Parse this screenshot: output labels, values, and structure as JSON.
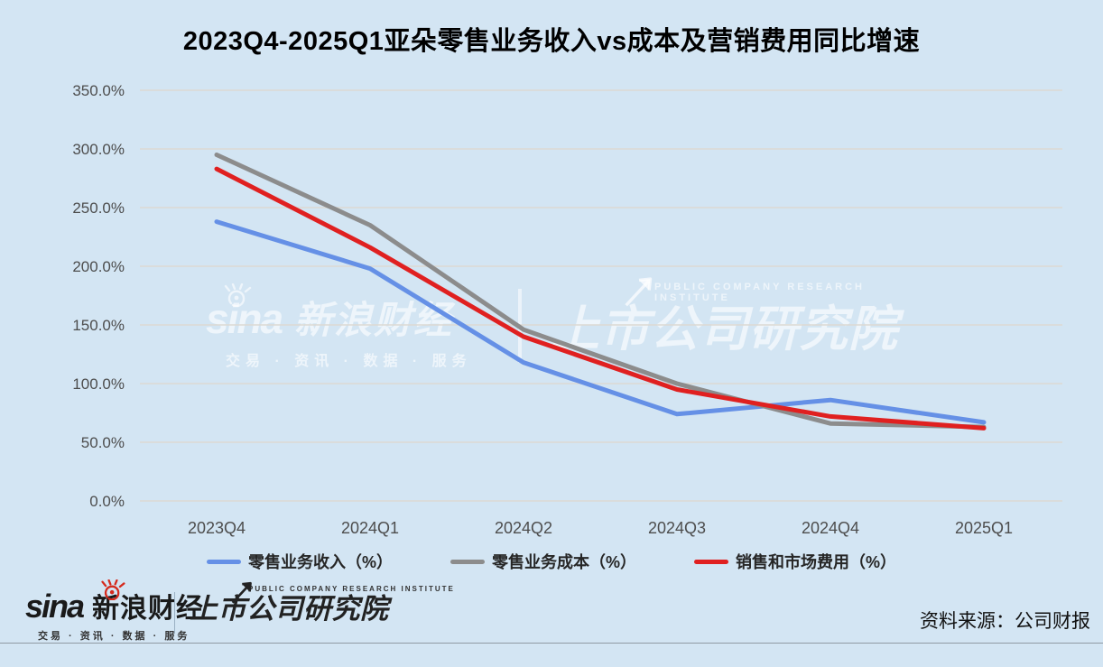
{
  "title": "2023Q4-2025Q1亚朵零售业务收入vs成本及营销费用同比增速",
  "chart_data": {
    "type": "line",
    "categories": [
      "2023Q4",
      "2024Q1",
      "2024Q2",
      "2024Q3",
      "2024Q4",
      "2025Q1"
    ],
    "series": [
      {
        "name": "零售业务收入（%）",
        "color": "#6590e6",
        "values": [
          238,
          198,
          118,
          74,
          86,
          67
        ]
      },
      {
        "name": "零售业务成本（%）",
        "color": "#8c8c8c",
        "values": [
          295,
          235,
          146,
          100,
          66,
          63
        ]
      },
      {
        "name": "销售和市场费用（%）",
        "color": "#e02020",
        "values": [
          283,
          216,
          140,
          95,
          72,
          62
        ]
      }
    ],
    "y_ticks": [
      "350.0%",
      "300.0%",
      "250.0%",
      "200.0%",
      "150.0%",
      "100.0%",
      "50.0%",
      "0.0%"
    ],
    "ylim": [
      0,
      350
    ],
    "grid": true,
    "legend_position": "bottom"
  },
  "watermark": {
    "sina_word": "sina",
    "brand": "新浪财经",
    "tagline": "交易 · 资讯 · 数据 · 服务",
    "institute_en": "PUBLIC COMPANY RESEARCH INSTITUTE",
    "institute": "上市公司研究院"
  },
  "footer": {
    "sina_word": "sina",
    "brand": "新浪财经",
    "tagline": "交易 · 资讯 · 数据 · 服务",
    "institute_en": "PUBLIC COMPANY RESEARCH INSTITUTE",
    "institute": "上市公司研究院",
    "source": "资料来源：公司财报"
  },
  "colors": {
    "background": "#d3e5f3",
    "gridline": "#dcd9d3",
    "revenue_line": "#6590e6",
    "cost_line": "#8c8c8c",
    "marketing_line": "#e02020"
  }
}
